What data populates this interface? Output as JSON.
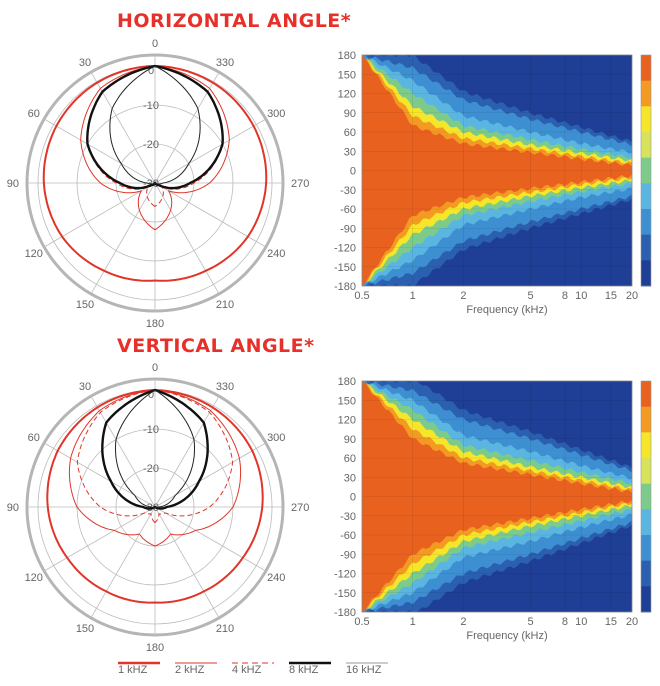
{
  "titles": {
    "horizontal": "HORIZONTAL ANGLE*",
    "vertical": "VERTICAL ANGLE*"
  },
  "colors": {
    "title": "#e8302a",
    "red": "#e03528",
    "black": "#111111",
    "gray": "#999999"
  },
  "legend": [
    {
      "label": "1 kHZ",
      "color": "#e03528",
      "style": "thick"
    },
    {
      "label": "2 kHZ",
      "color": "#e03528",
      "style": "thin"
    },
    {
      "label": "4 kHZ",
      "color": "#e03528",
      "style": "dashed"
    },
    {
      "label": "8 kHZ",
      "color": "#111111",
      "style": "thick"
    },
    {
      "label": "16 kHZ",
      "color": "#999999",
      "style": "thin"
    }
  ],
  "chart_data": [
    {
      "type": "polar",
      "title": "HORIZONTAL ANGLE*",
      "angle_labels": [
        "0",
        "30",
        "60",
        "90",
        "120",
        "150",
        "180",
        "210",
        "240",
        "270",
        "300",
        "330"
      ],
      "radial_labels": [
        "0",
        "-10",
        "-20",
        "-30"
      ],
      "radial_range_db": [
        -30,
        0
      ],
      "series": [
        {
          "name": "1 kHZ",
          "angles": [
            0,
            30,
            60,
            90,
            120,
            150,
            180
          ],
          "values": [
            0,
            -0.3,
            -0.8,
            -1.5,
            -2.5,
            -4,
            -5
          ]
        },
        {
          "name": "2 kHZ",
          "angles": [
            0,
            30,
            60,
            90,
            120,
            150,
            180
          ],
          "values": [
            0,
            -2,
            -8,
            -16,
            -26,
            -22,
            -18
          ]
        },
        {
          "name": "4 kHZ",
          "angles": [
            0,
            30,
            60,
            90,
            120,
            150,
            180
          ],
          "values": [
            0,
            -3,
            -10,
            -20,
            -28,
            -26,
            -24
          ]
        },
        {
          "name": "8 kHZ",
          "angles": [
            0,
            30,
            60,
            90,
            120,
            150,
            180
          ],
          "values": [
            0,
            -3,
            -10,
            -21,
            -29,
            -30,
            -30
          ]
        },
        {
          "name": "16 kHZ",
          "angles": [
            0,
            30,
            60,
            90,
            120,
            150,
            180
          ],
          "values": [
            0,
            -8,
            -20,
            -28,
            -30,
            -30,
            -30
          ]
        }
      ]
    },
    {
      "type": "heatmap",
      "xlabel": "Frequency (kHz)",
      "x_ticks": [
        "0.5",
        "1",
        "2",
        "5",
        "8",
        "10",
        "15",
        "20"
      ],
      "y_ticks": [
        "180",
        "150",
        "120",
        "90",
        "60",
        "30",
        "0",
        "-30",
        "-60",
        "-90",
        "-120",
        "-150",
        "-180"
      ],
      "xlim": [
        0.5,
        20
      ],
      "ylim": [
        -180,
        180
      ],
      "x_scale": "log",
      "beamwidth_edges": [
        {
          "freq": 0.5,
          "angles": [
            180,
            180,
            180,
            180,
            180,
            180
          ]
        },
        {
          "freq": 1,
          "angles": [
            160,
            140,
            120,
            100,
            85,
            70
          ]
        },
        {
          "freq": 2,
          "angles": [
            110,
            85,
            70,
            60,
            50,
            42
          ]
        },
        {
          "freq": 5,
          "angles": [
            80,
            60,
            48,
            40,
            34,
            28
          ]
        },
        {
          "freq": 10,
          "angles": [
            60,
            42,
            33,
            27,
            22,
            18
          ]
        },
        {
          "freq": 20,
          "angles": [
            40,
            28,
            20,
            15,
            11,
            8
          ]
        }
      ]
    },
    {
      "type": "polar",
      "title": "VERTICAL ANGLE*",
      "angle_labels": [
        "0",
        "30",
        "60",
        "90",
        "120",
        "150",
        "180",
        "210",
        "240",
        "270",
        "300",
        "330"
      ],
      "radial_labels": [
        "0",
        "-10",
        "-20",
        "-30"
      ],
      "radial_range_db": [
        -30,
        0
      ],
      "series": [
        {
          "name": "1 kHZ",
          "angles": [
            0,
            30,
            60,
            90,
            120,
            150,
            180
          ],
          "values": [
            0,
            -0.5,
            -1.2,
            -2.5,
            -4,
            -5,
            -5.5
          ]
        },
        {
          "name": "2 kHZ",
          "angles": [
            0,
            30,
            60,
            90,
            120,
            150,
            180
          ],
          "values": [
            0,
            -1.5,
            -5,
            -10,
            -18,
            -22,
            -20
          ]
        },
        {
          "name": "4 kHZ",
          "angles": [
            0,
            30,
            60,
            90,
            120,
            150,
            180
          ],
          "values": [
            0,
            -2,
            -7,
            -16,
            -27,
            -28,
            -26
          ]
        },
        {
          "name": "8 kHZ",
          "angles": [
            0,
            30,
            60,
            90,
            120,
            150,
            180
          ],
          "values": [
            0,
            -5,
            -17,
            -27,
            -30,
            -30,
            -30
          ]
        },
        {
          "name": "16 kHZ",
          "angles": [
            0,
            30,
            60,
            90,
            120,
            150,
            180
          ],
          "values": [
            0,
            -10,
            -24,
            -29,
            -30,
            -30,
            -30
          ]
        }
      ]
    },
    {
      "type": "heatmap",
      "xlabel": "Frequency (kHz)",
      "x_ticks": [
        "0.5",
        "1",
        "2",
        "5",
        "8",
        "10",
        "15",
        "20"
      ],
      "y_ticks": [
        "180",
        "150",
        "120",
        "90",
        "60",
        "30",
        "0",
        "-30",
        "-60",
        "-90",
        "-120",
        "-150",
        "-180"
      ],
      "xlim": [
        0.5,
        20
      ],
      "ylim": [
        -180,
        180
      ],
      "x_scale": "log",
      "beamwidth_edges": [
        {
          "freq": 0.5,
          "angles": [
            180,
            180,
            180,
            180,
            180,
            180
          ]
        },
        {
          "freq": 1,
          "angles": [
            165,
            150,
            135,
            120,
            105,
            90
          ]
        },
        {
          "freq": 2,
          "angles": [
            120,
            95,
            80,
            70,
            60,
            52
          ]
        },
        {
          "freq": 5,
          "angles": [
            90,
            70,
            56,
            46,
            40,
            34
          ]
        },
        {
          "freq": 10,
          "angles": [
            65,
            48,
            38,
            30,
            25,
            20
          ]
        },
        {
          "freq": 20,
          "angles": [
            40,
            28,
            20,
            14,
            10,
            7
          ]
        }
      ]
    }
  ],
  "colorbar": [
    "#e8611f",
    "#f39a22",
    "#f6e62a",
    "#d7e35a",
    "#7ccb8a",
    "#5ab6e0",
    "#3d8fd1",
    "#2b5fb0",
    "#1e3f95"
  ]
}
